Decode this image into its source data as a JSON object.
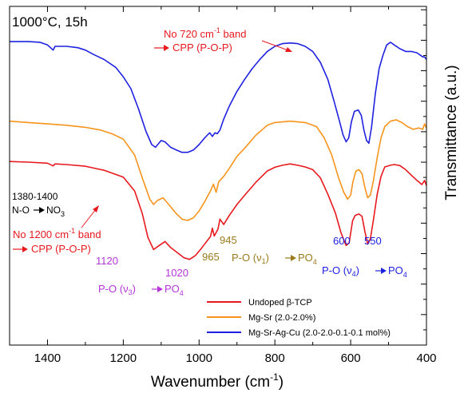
{
  "chart_data": {
    "type": "line",
    "title": "1000°C, 15h",
    "xlabel": "Wavenumber (cm",
    "xlabel_sup": "-1",
    "xlabel_close": ")",
    "ylabel": "Transmittance (a.u.)",
    "x_reversed": true,
    "xlim": [
      1500,
      400
    ],
    "ylim": [
      0,
      100
    ],
    "y_tick_labels_shown": false,
    "x_ticks": [
      {
        "value": 1400,
        "label": "1400"
      },
      {
        "value": 1200,
        "label": "1200"
      },
      {
        "value": 1000,
        "label": "1000"
      },
      {
        "value": 800,
        "label": "800"
      },
      {
        "value": 600,
        "label": "600"
      },
      {
        "value": 400,
        "label": "400"
      }
    ],
    "legend": {
      "placement": "bottom-right"
    },
    "series": [
      {
        "name": "Undoped β-TCP",
        "color": "#e8191e",
        "points": [
          [
            1500,
            54.2
          ],
          [
            1450,
            54.0
          ],
          [
            1400,
            53.7
          ],
          [
            1385,
            52.9
          ],
          [
            1380,
            53.5
          ],
          [
            1350,
            53.3
          ],
          [
            1300,
            52.8
          ],
          [
            1250,
            51.6
          ],
          [
            1200,
            49.6
          ],
          [
            1170,
            45.5
          ],
          [
            1150,
            38.9
          ],
          [
            1135,
            31.8
          ],
          [
            1120,
            28.2
          ],
          [
            1105,
            29.4
          ],
          [
            1090,
            30.6
          ],
          [
            1075,
            28.8
          ],
          [
            1055,
            27.1
          ],
          [
            1040,
            25.8
          ],
          [
            1025,
            25.3
          ],
          [
            1010,
            26.4
          ],
          [
            995,
            28.4
          ],
          [
            980,
            30.6
          ],
          [
            970,
            32.0
          ],
          [
            965,
            34.5
          ],
          [
            960,
            32.2
          ],
          [
            950,
            34.3
          ],
          [
            945,
            37.2
          ],
          [
            935,
            35.6
          ],
          [
            920,
            38.3
          ],
          [
            900,
            41.5
          ],
          [
            880,
            44.2
          ],
          [
            850,
            48.1
          ],
          [
            820,
            51.4
          ],
          [
            800,
            52.5
          ],
          [
            780,
            53.1
          ],
          [
            760,
            53.5
          ],
          [
            740,
            53.1
          ],
          [
            720,
            52.6
          ],
          [
            700,
            51.8
          ],
          [
            680,
            49.4
          ],
          [
            660,
            44.5
          ],
          [
            640,
            38.9
          ],
          [
            625,
            33.0
          ],
          [
            612,
            29.4
          ],
          [
            604,
            30.2
          ],
          [
            595,
            36.7
          ],
          [
            588,
            38.3
          ],
          [
            578,
            38.7
          ],
          [
            570,
            38.0
          ],
          [
            562,
            33.3
          ],
          [
            555,
            29.8
          ],
          [
            548,
            31.4
          ],
          [
            540,
            37.0
          ],
          [
            530,
            44.5
          ],
          [
            520,
            49.8
          ],
          [
            510,
            52.6
          ],
          [
            495,
            53.1
          ],
          [
            485,
            53.3
          ],
          [
            470,
            53.0
          ],
          [
            455,
            51.8
          ],
          [
            440,
            50.2
          ],
          [
            425,
            48.6
          ],
          [
            412,
            47.4
          ],
          [
            405,
            48.6
          ],
          [
            400,
            47.1
          ]
        ]
      },
      {
        "name": "Mg-Sr (2.0-2.0%)",
        "color": "#f7941d",
        "points": [
          [
            1500,
            66.1
          ],
          [
            1450,
            65.7
          ],
          [
            1400,
            65.3
          ],
          [
            1350,
            64.9
          ],
          [
            1300,
            64.3
          ],
          [
            1260,
            63.5
          ],
          [
            1230,
            62.4
          ],
          [
            1200,
            60.8
          ],
          [
            1170,
            56.1
          ],
          [
            1150,
            49.4
          ],
          [
            1130,
            43.1
          ],
          [
            1120,
            41.5
          ],
          [
            1110,
            42.7
          ],
          [
            1095,
            43.5
          ],
          [
            1080,
            41.5
          ],
          [
            1060,
            38.8
          ],
          [
            1045,
            37.2
          ],
          [
            1030,
            36.8
          ],
          [
            1015,
            37.6
          ],
          [
            1000,
            39.6
          ],
          [
            985,
            42.4
          ],
          [
            970,
            45.5
          ],
          [
            962,
            47.5
          ],
          [
            955,
            45.1
          ],
          [
            948,
            48.2
          ],
          [
            935,
            49.8
          ],
          [
            920,
            52.2
          ],
          [
            900,
            55.7
          ],
          [
            880,
            58.1
          ],
          [
            850,
            62.0
          ],
          [
            820,
            64.9
          ],
          [
            800,
            65.7
          ],
          [
            760,
            66.1
          ],
          [
            720,
            65.7
          ],
          [
            690,
            64.5
          ],
          [
            670,
            61.2
          ],
          [
            650,
            56.1
          ],
          [
            632,
            49.4
          ],
          [
            618,
            45.1
          ],
          [
            608,
            43.1
          ],
          [
            600,
            44.3
          ],
          [
            594,
            48.2
          ],
          [
            586,
            51.4
          ],
          [
            578,
            51.8
          ],
          [
            570,
            50.6
          ],
          [
            562,
            46.3
          ],
          [
            555,
            43.5
          ],
          [
            548,
            44.3
          ],
          [
            540,
            48.6
          ],
          [
            530,
            55.3
          ],
          [
            520,
            61.2
          ],
          [
            510,
            64.5
          ],
          [
            495,
            66.1
          ],
          [
            480,
            66.5
          ],
          [
            465,
            65.7
          ],
          [
            450,
            64.5
          ],
          [
            435,
            63.7
          ],
          [
            420,
            64.1
          ],
          [
            410,
            63.7
          ],
          [
            405,
            65.3
          ],
          [
            400,
            64.1
          ]
        ]
      },
      {
        "name": "Mg-Sr-Ag-Cu (2.0-2.0-0.1-0.1 mol%)",
        "color": "#1e22e0",
        "points": [
          [
            1500,
            89.6
          ],
          [
            1450,
            89.6
          ],
          [
            1420,
            89.4
          ],
          [
            1400,
            88.6
          ],
          [
            1385,
            87.1
          ],
          [
            1380,
            88.2
          ],
          [
            1350,
            88.2
          ],
          [
            1320,
            87.8
          ],
          [
            1300,
            87.1
          ],
          [
            1280,
            85.9
          ],
          [
            1250,
            84.3
          ],
          [
            1220,
            82.0
          ],
          [
            1200,
            79.2
          ],
          [
            1180,
            75.7
          ],
          [
            1160,
            69.8
          ],
          [
            1140,
            63.1
          ],
          [
            1125,
            59.2
          ],
          [
            1115,
            58.4
          ],
          [
            1100,
            60.4
          ],
          [
            1090,
            60.0
          ],
          [
            1075,
            58.4
          ],
          [
            1060,
            57.6
          ],
          [
            1045,
            56.9
          ],
          [
            1030,
            56.9
          ],
          [
            1015,
            57.6
          ],
          [
            1000,
            59.2
          ],
          [
            985,
            61.2
          ],
          [
            972,
            62.7
          ],
          [
            965,
            61.6
          ],
          [
            958,
            62.7
          ],
          [
            952,
            62.4
          ],
          [
            945,
            63.5
          ],
          [
            935,
            66.7
          ],
          [
            920,
            70.6
          ],
          [
            900,
            74.9
          ],
          [
            880,
            78.4
          ],
          [
            860,
            81.6
          ],
          [
            840,
            84.3
          ],
          [
            820,
            86.7
          ],
          [
            800,
            88.2
          ],
          [
            780,
            89.0
          ],
          [
            760,
            89.2
          ],
          [
            740,
            89.0
          ],
          [
            720,
            88.2
          ],
          [
            700,
            86.7
          ],
          [
            680,
            83.5
          ],
          [
            660,
            78.4
          ],
          [
            645,
            72.5
          ],
          [
            630,
            66.3
          ],
          [
            620,
            62.0
          ],
          [
            612,
            60.0
          ],
          [
            605,
            61.2
          ],
          [
            598,
            65.9
          ],
          [
            590,
            69.0
          ],
          [
            580,
            69.4
          ],
          [
            572,
            67.8
          ],
          [
            565,
            63.5
          ],
          [
            558,
            60.4
          ],
          [
            552,
            59.6
          ],
          [
            545,
            64.3
          ],
          [
            535,
            74.1
          ],
          [
            525,
            81.6
          ],
          [
            515,
            85.5
          ],
          [
            505,
            88.6
          ],
          [
            495,
            89.4
          ],
          [
            485,
            88.6
          ],
          [
            470,
            87.5
          ],
          [
            455,
            86.7
          ],
          [
            440,
            86.7
          ],
          [
            425,
            86.3
          ],
          [
            410,
            85.1
          ],
          [
            405,
            85.1
          ],
          [
            400,
            84.3
          ]
        ]
      }
    ],
    "annotations": [
      {
        "id": "no720",
        "line1": "No 720 cm",
        "sup": "-1",
        "line1_tail": " band",
        "line2": "CPP (P-O-P)",
        "color": "#e8191e"
      },
      {
        "id": "n-o",
        "line1": "1380-1400",
        "line2": "N-O",
        "line2_tail": "NO",
        "line2_sub": "3",
        "color": "#000000"
      },
      {
        "id": "no1200",
        "line1": "No 1200 cm",
        "sup": "-1",
        "line1_tail": " band",
        "line2": "CPP (P-O-P)",
        "color": "#e8191e"
      },
      {
        "id": "v3",
        "text_a": "P-O (",
        "greek": "ν",
        "greek_sub": "3",
        "text_b": ")",
        "text_c": "PO",
        "text_c_sub": "4",
        "color": "#b535d9"
      },
      {
        "id": "v1",
        "text_a": "P-O (",
        "greek": "ν",
        "greek_sub": "1",
        "text_b": ")",
        "text_c": "PO",
        "text_c_sub": "4",
        "color": "#9a7a1a"
      },
      {
        "id": "v4",
        "text_a": "P-O (",
        "greek": "ν",
        "greek_sub": "4",
        "text_b": ")",
        "text_c": "PO",
        "text_c_sub": "4",
        "color": "#1e22e0"
      }
    ],
    "peak_labels": [
      {
        "text": "1120",
        "color": "#b535d9"
      },
      {
        "text": "1020",
        "color": "#b535d9"
      },
      {
        "text": "965",
        "color": "#9a7a1a"
      },
      {
        "text": "945",
        "color": "#9a7a1a"
      },
      {
        "text": "600",
        "color": "#1e22e0"
      },
      {
        "text": "550",
        "color": "#1e22e0"
      }
    ]
  }
}
